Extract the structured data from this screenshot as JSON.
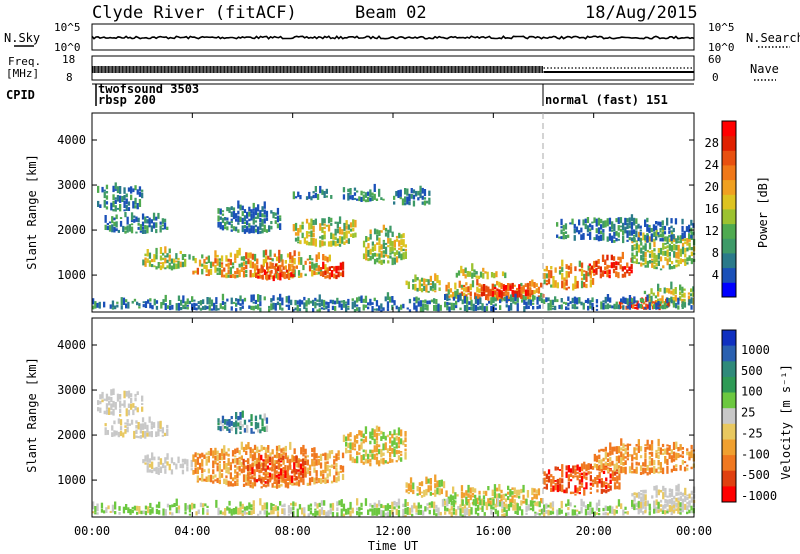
{
  "header": {
    "title": "Clyde River (fitACF)",
    "beam": "Beam 02",
    "date": "18/Aug/2015"
  },
  "nsky_panel": {
    "label_left": "N.Sky",
    "label_right": "N.Search",
    "y_ticks_left": [
      "10^5",
      "10^0"
    ],
    "y_ticks_right": [
      "10^5",
      "10^0"
    ]
  },
  "freq_panel": {
    "label_line1": "Freq.",
    "label_line2": "[MHz]",
    "label_right": "Nave",
    "y_ticks_left": [
      "18",
      "8"
    ],
    "y_ticks_right": [
      "60",
      "0"
    ]
  },
  "cpid_panel": {
    "label": "CPID",
    "modes": [
      {
        "name": "twofsound 3503",
        "start_hour": 0.2
      },
      {
        "name": "rbsp 200",
        "start_hour": 0.2
      },
      {
        "name": "normal (fast) 151",
        "start_hour": 18.0
      }
    ]
  },
  "x_axis": {
    "label": "Time UT",
    "ticks": [
      "00:00",
      "04:00",
      "08:00",
      "12:00",
      "16:00",
      "20:00",
      "00:00"
    ],
    "range_hours": [
      0,
      24
    ]
  },
  "chart_data": [
    {
      "type": "heatmap",
      "name": "power",
      "ylabel": "Slant Range [km]",
      "yticks": [
        1000,
        2000,
        3000,
        4000
      ],
      "ylim": [
        180,
        4600
      ],
      "colorbar": {
        "label": "Power [dB]",
        "ticks": [
          4,
          8,
          12,
          16,
          20,
          24,
          28
        ],
        "range": [
          0,
          32
        ],
        "colors": [
          "#0000ff",
          "#1a50b8",
          "#2a7a8a",
          "#3e9a68",
          "#4faa50",
          "#9cc230",
          "#ddc320",
          "#f0a020",
          "#f07818",
          "#e85010",
          "#e02000",
          "#ff0000"
        ]
      },
      "regions": [
        {
          "t0": 0.2,
          "t1": 2.0,
          "r0": 2400,
          "r1": 2950,
          "level": "low"
        },
        {
          "t0": 0.5,
          "t1": 3.0,
          "r0": 1900,
          "r1": 2300,
          "level": "low"
        },
        {
          "t0": 2.0,
          "t1": 4.0,
          "r0": 1100,
          "r1": 1500,
          "level": "mid"
        },
        {
          "t0": 4.0,
          "t1": 9.5,
          "r0": 900,
          "r1": 1450,
          "level": "high"
        },
        {
          "t0": 6.5,
          "t1": 8.0,
          "r0": 850,
          "r1": 1200,
          "level": "peak"
        },
        {
          "t0": 5.0,
          "t1": 7.5,
          "r0": 1900,
          "r1": 2500,
          "level": "low"
        },
        {
          "t0": 8.0,
          "t1": 10.5,
          "r0": 1600,
          "r1": 2200,
          "level": "mid"
        },
        {
          "t0": 9.0,
          "t1": 10.0,
          "r0": 900,
          "r1": 1200,
          "level": "peak"
        },
        {
          "t0": 8.0,
          "t1": 9.6,
          "r0": 2650,
          "r1": 2850,
          "level": "low"
        },
        {
          "t0": 10.0,
          "t1": 11.6,
          "r0": 2600,
          "r1": 2900,
          "level": "low"
        },
        {
          "t0": 10.8,
          "t1": 12.5,
          "r0": 1200,
          "r1": 2000,
          "level": "mid"
        },
        {
          "t0": 12.0,
          "t1": 13.5,
          "r0": 2500,
          "r1": 2850,
          "level": "low"
        },
        {
          "t0": 12.5,
          "t1": 14.0,
          "r0": 600,
          "r1": 900,
          "level": "mid"
        },
        {
          "t0": 14.0,
          "t1": 18.0,
          "r0": 400,
          "r1": 800,
          "level": "high"
        },
        {
          "t0": 15.5,
          "t1": 17.5,
          "r0": 450,
          "r1": 700,
          "level": "peak"
        },
        {
          "t0": 14.5,
          "t1": 16.5,
          "r0": 900,
          "r1": 1100,
          "level": "mid"
        },
        {
          "t0": 18.0,
          "t1": 20.0,
          "r0": 650,
          "r1": 1200,
          "level": "high"
        },
        {
          "t0": 19.8,
          "t1": 21.5,
          "r0": 900,
          "r1": 1400,
          "level": "peak"
        },
        {
          "t0": 21.5,
          "t1": 24.0,
          "r0": 1100,
          "r1": 1900,
          "level": "mid"
        },
        {
          "t0": 22.0,
          "t1": 24.0,
          "r0": 250,
          "r1": 700,
          "level": "mid"
        },
        {
          "t0": 21.0,
          "t1": 23.0,
          "r0": 200,
          "r1": 400,
          "level": "peak"
        },
        {
          "t0": 18.5,
          "t1": 24.0,
          "r0": 1700,
          "r1": 2200,
          "level": "low"
        },
        {
          "t0": 0.0,
          "t1": 24.0,
          "r0": 180,
          "r1": 450,
          "level": "low"
        }
      ]
    },
    {
      "type": "heatmap",
      "name": "velocity",
      "ylabel": "Slant Range [km]",
      "yticks": [
        1000,
        2000,
        3000,
        4000
      ],
      "ylim": [
        180,
        4600
      ],
      "colorbar": {
        "label": "Velocity [m s⁻¹]",
        "ticks": [
          1000,
          500,
          100,
          25,
          -25,
          -100,
          -500,
          -1000
        ],
        "colors": [
          "#1030c0",
          "#2a60b0",
          "#2f8a7a",
          "#2e9a55",
          "#6cc840",
          "#c8c8c8",
          "#e8c860",
          "#f0a030",
          "#f07820",
          "#e04010",
          "#ff0000"
        ]
      },
      "regions": [
        {
          "t0": 0.2,
          "t1": 2.0,
          "r0": 2400,
          "r1": 2950,
          "level": "grey"
        },
        {
          "t0": 0.5,
          "t1": 3.0,
          "r0": 1900,
          "r1": 2300,
          "level": "grey"
        },
        {
          "t0": 2.0,
          "t1": 4.0,
          "r0": 1100,
          "r1": 1500,
          "level": "grey"
        },
        {
          "t0": 4.0,
          "t1": 10.0,
          "r0": 800,
          "r1": 1700,
          "level": "neg-mid"
        },
        {
          "t0": 6.0,
          "t1": 8.5,
          "r0": 900,
          "r1": 1500,
          "level": "neg-high"
        },
        {
          "t0": 5.0,
          "t1": 7.0,
          "r0": 2000,
          "r1": 2400,
          "level": "pos"
        },
        {
          "t0": 10.0,
          "t1": 12.5,
          "r0": 1300,
          "r1": 2100,
          "level": "neg-low"
        },
        {
          "t0": 12.5,
          "t1": 14.0,
          "r0": 600,
          "r1": 1000,
          "level": "neg-low"
        },
        {
          "t0": 14.0,
          "t1": 18.0,
          "r0": 400,
          "r1": 800,
          "level": "neg-low"
        },
        {
          "t0": 18.0,
          "t1": 21.0,
          "r0": 650,
          "r1": 1300,
          "level": "neg-high"
        },
        {
          "t0": 20.0,
          "t1": 24.0,
          "r0": 1100,
          "r1": 1800,
          "level": "neg-mid"
        },
        {
          "t0": 21.5,
          "t1": 24.0,
          "r0": 250,
          "r1": 800,
          "level": "grey"
        },
        {
          "t0": 0.0,
          "t1": 24.0,
          "r0": 180,
          "r1": 450,
          "level": "ground"
        }
      ]
    }
  ]
}
